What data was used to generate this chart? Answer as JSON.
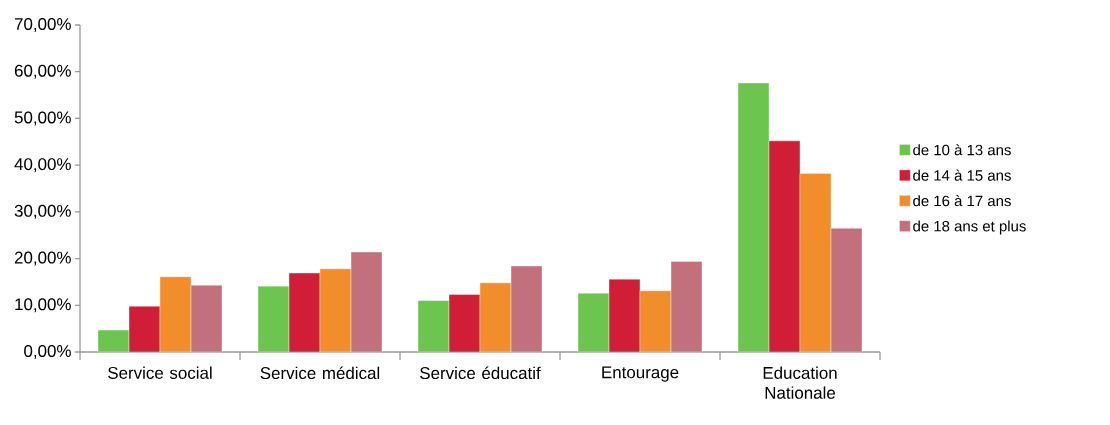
{
  "chart_data": {
    "type": "bar",
    "categories": [
      "Service social",
      "Service médical",
      "Service éducatif",
      "Entourage",
      "Education Nationale"
    ],
    "series": [
      {
        "name": "de 10 à 13 ans",
        "color": "#6cc54f",
        "values": [
          4.7,
          14.1,
          11.0,
          12.6,
          57.6
        ]
      },
      {
        "name": "de 14 à 15 ans",
        "color": "#d11e37",
        "values": [
          9.8,
          16.9,
          12.3,
          15.6,
          45.2
        ]
      },
      {
        "name": "de 16 à 17 ans",
        "color": "#f18d2b",
        "values": [
          16.1,
          17.8,
          14.8,
          13.1,
          38.2
        ]
      },
      {
        "name": "de 18 ans et plus",
        "color": "#c2707b",
        "values": [
          14.3,
          21.4,
          18.4,
          19.4,
          26.5
        ]
      }
    ],
    "ylim": [
      0,
      70
    ],
    "yticks": [
      {
        "value": 0,
        "label": "0,00%"
      },
      {
        "value": 10,
        "label": "10,00%"
      },
      {
        "value": 20,
        "label": "20,00%"
      },
      {
        "value": 30,
        "label": "30,00%"
      },
      {
        "value": 40,
        "label": "40,00%"
      },
      {
        "value": 50,
        "label": "50,00%"
      },
      {
        "value": 60,
        "label": "60,00%"
      },
      {
        "value": 70,
        "label": "70,00%"
      }
    ],
    "grid": false,
    "legend": "right"
  }
}
